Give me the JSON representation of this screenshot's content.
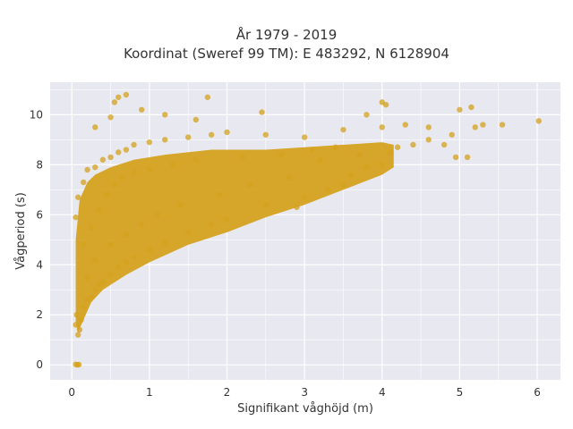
{
  "chart_data": {
    "type": "scatter",
    "title": "År 1979 - 2019",
    "subtitle": "Koordinat (Sweref 99 TM): E 483292, N 6128904",
    "xlabel": "Signifikant våghöjd (m)",
    "ylabel": "Vågperiod (s)",
    "xlim": [
      -0.28,
      6.3
    ],
    "ylim": [
      -0.6,
      11.3
    ],
    "xticks": [
      0,
      1,
      2,
      3,
      4,
      5,
      6
    ],
    "yticks": [
      0,
      2,
      4,
      6,
      8,
      10
    ],
    "grid": true,
    "point_color": "#D4A21E",
    "plot_background": "#E8E8F0",
    "series": [
      {
        "points": [
          [
            0.05,
            0.02
          ],
          [
            0.07,
            0.0
          ],
          [
            0.09,
            0.01
          ],
          [
            0.08,
            1.2
          ],
          [
            0.05,
            1.6
          ],
          [
            0.06,
            2.0
          ],
          [
            0.1,
            1.4
          ],
          [
            0.12,
            1.8
          ],
          [
            0.15,
            2.3
          ],
          [
            0.2,
            2.6
          ],
          [
            0.25,
            2.7
          ],
          [
            0.3,
            3.0
          ],
          [
            0.35,
            3.2
          ],
          [
            0.4,
            3.3
          ],
          [
            0.5,
            3.6
          ],
          [
            0.6,
            3.9
          ],
          [
            0.7,
            4.1
          ],
          [
            0.8,
            4.3
          ],
          [
            1.0,
            4.6
          ],
          [
            1.2,
            4.9
          ],
          [
            1.5,
            5.3
          ],
          [
            1.8,
            5.6
          ],
          [
            2.0,
            5.8
          ],
          [
            2.5,
            6.4
          ],
          [
            3.0,
            6.7
          ],
          [
            3.3,
            7.0
          ],
          [
            3.6,
            7.6
          ],
          [
            3.8,
            7.9
          ],
          [
            4.0,
            8.0
          ],
          [
            0.05,
            5.9
          ],
          [
            0.08,
            6.7
          ],
          [
            0.15,
            7.3
          ],
          [
            0.2,
            7.8
          ],
          [
            0.3,
            7.9
          ],
          [
            0.4,
            8.2
          ],
          [
            0.5,
            8.3
          ],
          [
            0.6,
            8.5
          ],
          [
            0.7,
            8.6
          ],
          [
            0.8,
            8.8
          ],
          [
            1.0,
            8.9
          ],
          [
            1.2,
            9.0
          ],
          [
            1.5,
            9.1
          ],
          [
            1.8,
            9.2
          ],
          [
            2.0,
            9.3
          ],
          [
            2.5,
            9.2
          ],
          [
            3.0,
            9.1
          ],
          [
            3.5,
            9.4
          ],
          [
            4.0,
            9.5
          ],
          [
            4.3,
            9.6
          ],
          [
            4.6,
            9.5
          ],
          [
            0.55,
            10.5
          ],
          [
            0.6,
            10.7
          ],
          [
            0.7,
            10.8
          ],
          [
            1.75,
            10.7
          ],
          [
            0.3,
            9.5
          ],
          [
            0.5,
            9.9
          ],
          [
            0.9,
            10.2
          ],
          [
            1.2,
            10.0
          ],
          [
            1.6,
            9.8
          ],
          [
            2.45,
            10.1
          ],
          [
            3.8,
            10.0
          ],
          [
            4.0,
            10.5
          ],
          [
            4.05,
            10.4
          ],
          [
            5.0,
            10.2
          ],
          [
            5.15,
            10.3
          ],
          [
            5.3,
            9.6
          ],
          [
            5.55,
            9.6
          ],
          [
            5.1,
            8.3
          ],
          [
            4.95,
            8.3
          ],
          [
            4.8,
            8.8
          ],
          [
            4.6,
            9.0
          ],
          [
            4.2,
            8.7
          ],
          [
            6.02,
            9.75
          ],
          [
            5.2,
            9.5
          ],
          [
            4.9,
            9.2
          ],
          [
            3.2,
            8.2
          ],
          [
            2.8,
            7.5
          ],
          [
            2.3,
            7.2
          ],
          [
            1.9,
            6.8
          ],
          [
            1.4,
            6.4
          ],
          [
            1.1,
            6.0
          ],
          [
            0.9,
            5.6
          ],
          [
            0.7,
            5.2
          ],
          [
            0.5,
            4.8
          ],
          [
            0.3,
            4.2
          ],
          [
            0.2,
            3.5
          ],
          [
            0.15,
            4.8
          ],
          [
            0.25,
            5.5
          ],
          [
            0.35,
            6.2
          ],
          [
            0.45,
            6.8
          ],
          [
            0.55,
            7.2
          ],
          [
            0.65,
            7.5
          ],
          [
            0.8,
            7.7
          ],
          [
            1.0,
            7.8
          ],
          [
            1.3,
            8.0
          ],
          [
            1.6,
            8.2
          ],
          [
            2.2,
            8.3
          ],
          [
            2.7,
            8.4
          ],
          [
            3.1,
            8.6
          ],
          [
            3.4,
            8.7
          ],
          [
            3.7,
            8.4
          ],
          [
            2.9,
            6.3
          ],
          [
            3.5,
            7.2
          ],
          [
            4.1,
            8.5
          ],
          [
            4.4,
            8.8
          ]
        ]
      }
    ]
  }
}
